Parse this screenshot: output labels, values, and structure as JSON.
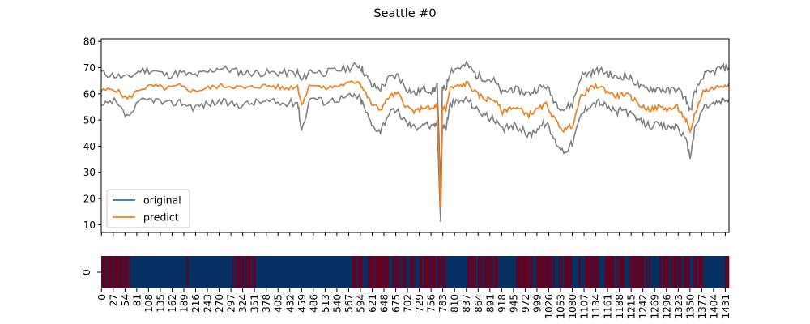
{
  "chart_data": [
    {
      "type": "line",
      "title": "Seattle #0",
      "xlabel": "",
      "ylabel": "",
      "xlim": [
        0,
        1439
      ],
      "ylim": [
        7,
        81
      ],
      "yticks": [
        10,
        20,
        30,
        40,
        50,
        60,
        70,
        80
      ],
      "grid": false,
      "legend_position": "lower-left",
      "band_color": "#808080",
      "series": [
        {
          "name": "original",
          "color": "#1f77b4",
          "values_approx": "overlaps predict (hidden beneath it)"
        },
        {
          "name": "predict",
          "color": "#ff7f0e",
          "x": [
            0,
            30,
            60,
            90,
            120,
            150,
            180,
            210,
            240,
            270,
            300,
            330,
            360,
            390,
            420,
            450,
            459,
            480,
            510,
            540,
            570,
            590,
            600,
            620,
            640,
            660,
            680,
            700,
            720,
            740,
            760,
            770,
            778,
            782,
            790,
            800,
            820,
            840,
            860,
            880,
            900,
            920,
            940,
            960,
            980,
            1000,
            1020,
            1040,
            1060,
            1080,
            1100,
            1120,
            1140,
            1160,
            1180,
            1200,
            1220,
            1240,
            1260,
            1280,
            1300,
            1320,
            1340,
            1350,
            1360,
            1380,
            1400,
            1420,
            1439
          ],
          "y": [
            61,
            62,
            58,
            62,
            63,
            62,
            63,
            61,
            62,
            63,
            63,
            62,
            63,
            63,
            62,
            63,
            56,
            64,
            62,
            63,
            64,
            65,
            62,
            56,
            54,
            59,
            60,
            55,
            53,
            55,
            54,
            56,
            16,
            55,
            54,
            62,
            63,
            64,
            60,
            58,
            58,
            53,
            55,
            54,
            52,
            54,
            56,
            50,
            46,
            48,
            59,
            62,
            63,
            61,
            59,
            60,
            58,
            55,
            54,
            55,
            54,
            55,
            50,
            45,
            52,
            61,
            62,
            63,
            64
          ]
        }
      ],
      "upper_band_y": [
        68,
        67,
        66,
        69,
        69,
        67,
        68,
        67,
        68,
        70,
        69,
        68,
        68,
        68,
        68,
        68,
        65,
        69,
        68,
        69,
        70,
        71,
        69,
        63,
        62,
        66,
        67,
        62,
        60,
        62,
        61,
        63,
        25,
        62,
        62,
        69,
        70,
        71,
        67,
        66,
        65,
        60,
        62,
        61,
        60,
        62,
        63,
        57,
        54,
        56,
        67,
        68,
        69,
        68,
        66,
        67,
        65,
        62,
        62,
        62,
        61,
        62,
        58,
        53,
        60,
        67,
        68,
        70,
        70
      ],
      "lower_band_y": [
        55,
        57,
        51,
        57,
        58,
        56,
        57,
        55,
        56,
        57,
        56,
        56,
        57,
        57,
        56,
        57,
        46,
        59,
        57,
        58,
        59,
        59,
        56,
        48,
        46,
        53,
        53,
        49,
        47,
        49,
        47,
        49,
        11,
        48,
        47,
        56,
        57,
        58,
        54,
        52,
        50,
        46,
        48,
        47,
        44,
        47,
        49,
        42,
        38,
        41,
        52,
        56,
        57,
        55,
        53,
        54,
        51,
        49,
        48,
        48,
        47,
        48,
        42,
        36,
        46,
        55,
        56,
        57,
        58
      ]
    },
    {
      "type": "heatmap",
      "row_labels": [
        "0"
      ],
      "n_columns": 1440,
      "colors": {
        "low": "#053061",
        "high": "#67001f"
      },
      "xtick_labels": [
        "0",
        "27",
        "54",
        "81",
        "108",
        "135",
        "162",
        "189",
        "216",
        "243",
        "270",
        "297",
        "324",
        "351",
        "378",
        "405",
        "432",
        "459",
        "486",
        "513",
        "540",
        "567",
        "594",
        "621",
        "648",
        "675",
        "702",
        "729",
        "756",
        "783",
        "810",
        "837",
        "864",
        "891",
        "918",
        "945",
        "972",
        "999",
        "1026",
        "1053",
        "1080",
        "1107",
        "1134",
        "1161",
        "1188",
        "1215",
        "1242",
        "1269",
        "1296",
        "1323",
        "1350",
        "1377",
        "1404",
        "1431"
      ],
      "high_ranges": [
        [
          0,
          65
        ],
        [
          196,
          198
        ],
        [
          302,
          353
        ],
        [
          575,
          790
        ],
        [
          840,
          910
        ],
        [
          950,
          1140
        ],
        [
          1154,
          1260
        ],
        [
          1280,
          1330
        ],
        [
          1336,
          1380
        ],
        [
          1430,
          1439
        ]
      ],
      "low_within_high": [
        [
          600,
          612
        ],
        [
          660,
          668
        ],
        [
          700,
          708
        ],
        [
          720,
          730
        ],
        [
          800,
          830
        ],
        [
          990,
          998
        ],
        [
          1040,
          1048
        ],
        [
          1080,
          1095
        ],
        [
          1100,
          1110
        ],
        [
          1200,
          1210
        ],
        [
          1350,
          1358
        ]
      ]
    }
  ]
}
